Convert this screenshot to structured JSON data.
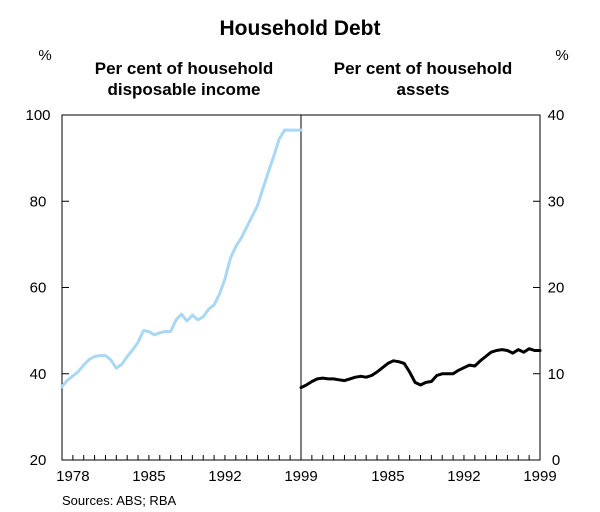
{
  "title": "Household Debt",
  "sources": "Sources:  ABS; RBA",
  "chart_data": [
    {
      "type": "line",
      "panel": "left",
      "subtitle_lines": [
        "Per cent of household",
        "disposable income"
      ],
      "unit_label": "%",
      "ylim": [
        20,
        100
      ],
      "y_ticks": [
        20,
        40,
        60,
        80,
        100
      ],
      "xlim": [
        1977,
        1999
      ],
      "x_tick_labels": [
        "1978",
        "1985",
        "1992",
        "1999"
      ],
      "x_tick_values": [
        1978,
        1985,
        1992,
        1999
      ],
      "grid": false,
      "series": [
        {
          "color": "#a9d8f5",
          "x": [
            1977.0,
            1977.5,
            1978.0,
            1978.5,
            1979.0,
            1979.5,
            1980.0,
            1980.5,
            1981.0,
            1981.5,
            1982.0,
            1982.5,
            1983.0,
            1983.5,
            1984.0,
            1984.5,
            1985.0,
            1985.5,
            1986.0,
            1986.5,
            1987.0,
            1987.5,
            1988.0,
            1988.5,
            1989.0,
            1989.5,
            1990.0,
            1990.5,
            1991.0,
            1991.5,
            1992.0,
            1992.5,
            1993.0,
            1993.5,
            1994.0,
            1994.5,
            1995.0,
            1995.5,
            1996.0,
            1996.5,
            1997.0,
            1997.5,
            1998.0,
            1998.5,
            1999.0
          ],
          "values": [
            37.0,
            38.5,
            39.5,
            40.5,
            42.0,
            43.3,
            44.0,
            44.2,
            44.2,
            43.2,
            41.3,
            42.2,
            44.0,
            45.5,
            47.3,
            50.0,
            49.8,
            49.0,
            49.5,
            49.8,
            49.8,
            52.5,
            53.8,
            52.2,
            53.6,
            52.5,
            53.2,
            55.0,
            56.0,
            58.5,
            62.0,
            66.8,
            69.5,
            71.5,
            74.0,
            76.5,
            79.0,
            83.0,
            86.8,
            90.5,
            94.5,
            96.5,
            96.5,
            96.5,
            96.5
          ]
        }
      ]
    },
    {
      "type": "line",
      "panel": "right",
      "subtitle_lines": [
        "Per cent of household",
        "assets"
      ],
      "unit_label": "%",
      "ylim": [
        0,
        40
      ],
      "y_ticks": [
        0,
        10,
        20,
        30,
        40
      ],
      "xlim": [
        1977,
        1999
      ],
      "x_tick_labels": [
        "1985",
        "1992",
        "1999"
      ],
      "x_tick_values": [
        1985,
        1992,
        1999
      ],
      "grid": false,
      "series": [
        {
          "color": "#000000",
          "x": [
            1977.0,
            1977.5,
            1978.0,
            1978.5,
            1979.0,
            1979.5,
            1980.0,
            1980.5,
            1981.0,
            1981.5,
            1982.0,
            1982.5,
            1983.0,
            1983.5,
            1984.0,
            1984.5,
            1985.0,
            1985.5,
            1986.0,
            1986.5,
            1987.0,
            1987.5,
            1988.0,
            1988.5,
            1989.0,
            1989.5,
            1990.0,
            1990.5,
            1991.0,
            1991.5,
            1992.0,
            1992.5,
            1993.0,
            1993.5,
            1994.0,
            1994.5,
            1995.0,
            1995.5,
            1996.0,
            1996.5,
            1997.0,
            1997.5,
            1998.0,
            1998.5,
            1999.0
          ],
          "values": [
            8.4,
            8.7,
            9.1,
            9.4,
            9.5,
            9.4,
            9.4,
            9.3,
            9.2,
            9.4,
            9.6,
            9.7,
            9.6,
            9.8,
            10.2,
            10.7,
            11.2,
            11.5,
            11.4,
            11.2,
            10.2,
            9.0,
            8.7,
            9.0,
            9.1,
            9.8,
            10.0,
            10.0,
            10.0,
            10.4,
            10.7,
            11.0,
            10.9,
            11.5,
            12.0,
            12.5,
            12.7,
            12.8,
            12.7,
            12.4,
            12.8,
            12.5,
            12.9,
            12.7,
            12.7
          ]
        }
      ]
    }
  ]
}
